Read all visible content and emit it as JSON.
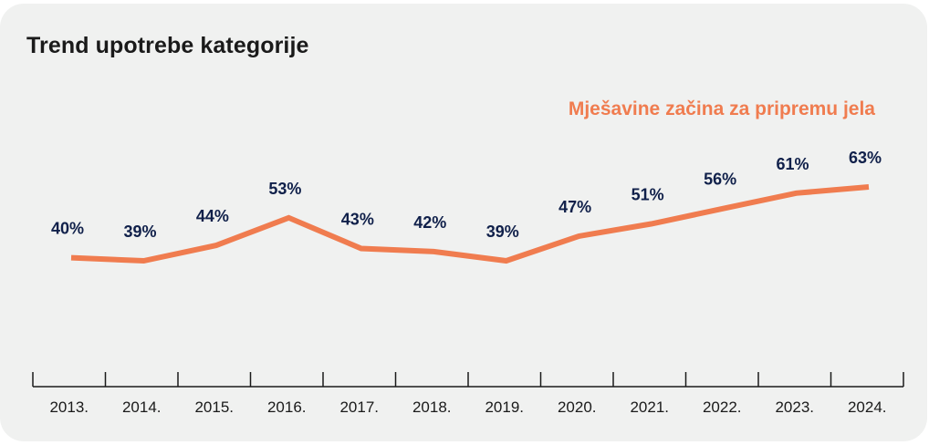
{
  "chart_data": {
    "type": "line",
    "title": "Trend upotrebe kategorije",
    "categories": [
      "2013.",
      "2014.",
      "2015.",
      "2016.",
      "2017.",
      "2018.",
      "2019.",
      "2020.",
      "2021.",
      "2022.",
      "2023.",
      "2024."
    ],
    "series": [
      {
        "name": "Mješavine začina za pripremu jela",
        "values": [
          40,
          39,
          44,
          53,
          43,
          42,
          39,
          47,
          51,
          56,
          61,
          63
        ],
        "labels": [
          "40%",
          "39%",
          "44%",
          "53%",
          "43%",
          "42%",
          "39%",
          "47%",
          "51%",
          "56%",
          "61%",
          "63%"
        ],
        "color": "#f07c4f"
      }
    ],
    "xlabel": "",
    "ylabel": "",
    "ylim": [
      0,
      100
    ],
    "grid": false,
    "legend": "top-right"
  }
}
